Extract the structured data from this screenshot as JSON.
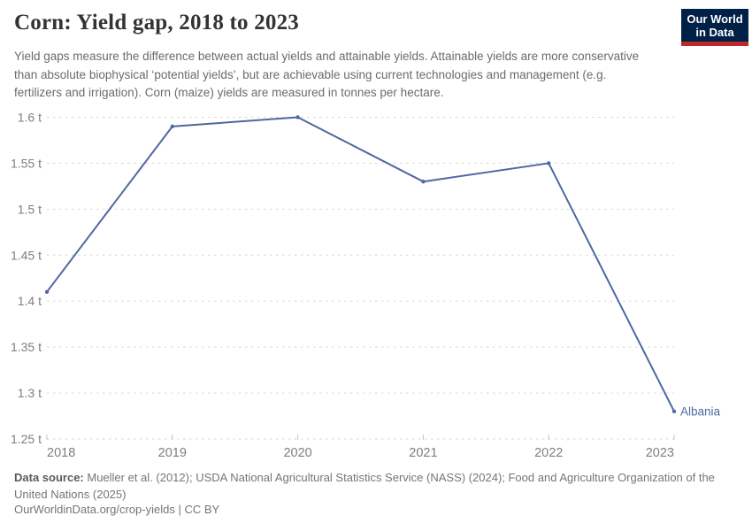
{
  "header": {
    "title": "Corn: Yield gap, 2018 to 2023",
    "subtitle": "Yield gaps measure the difference between actual yields and attainable yields. Attainable yields are more conservative than absolute biophysical ‘potential yields’, but are achievable using current technologies and management (e.g. fertilizers and irrigation). Corn (maize) yields are measured in tonnes per hectare.",
    "logo": {
      "line1": "Our World",
      "line2": "in Data"
    }
  },
  "chart_data": {
    "type": "line",
    "title": "Corn: Yield gap, 2018 to 2023",
    "x": [
      2018,
      2019,
      2020,
      2021,
      2022,
      2023
    ],
    "xtick_labels": [
      "2018",
      "2019",
      "2020",
      "2021",
      "2022",
      "2023"
    ],
    "series": [
      {
        "name": "Albania",
        "values": [
          1.41,
          1.59,
          1.6,
          1.53,
          1.55,
          1.28
        ],
        "color": "#4f68a1"
      }
    ],
    "unit": "tonnes per hectare",
    "unit_short": "t",
    "ylim": [
      1.25,
      1.6
    ],
    "yticks": [
      1.25,
      1.3,
      1.35,
      1.4,
      1.45,
      1.5,
      1.55,
      1.6
    ],
    "ytick_labels": [
      "1.25 t",
      "1.3 t",
      "1.35 t",
      "1.4 t",
      "1.45 t",
      "1.5 t",
      "1.55 t",
      "1.6 t"
    ],
    "grid": "horizontal-dashed",
    "legend_position": "end-of-line-label"
  },
  "footer": {
    "source_label": "Data source:",
    "source_text": " Mueller et al. (2012); USDA National Agricultural Statistics Service (NASS) (2024); Food and Agriculture Organization of the United Nations (2025)",
    "link": "OurWorldinData.org/crop-yields",
    "separator": " | ",
    "license": "CC BY"
  },
  "colors": {
    "accent_line": "#4f68a1",
    "grid": "#d6d6d6",
    "tick": "#c4c4c4",
    "axis_text": "#7e7e7e",
    "title_text": "#333333",
    "subtitle_text": "#6b6b6b",
    "logo_bg": "#002147",
    "logo_red": "#c0272d"
  }
}
